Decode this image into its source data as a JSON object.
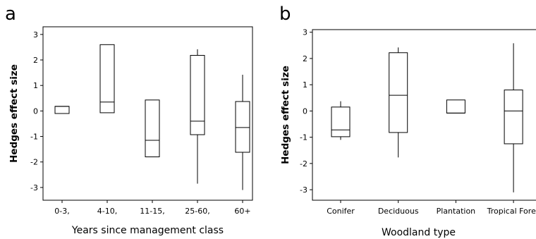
{
  "chart_data": [
    {
      "panel": "a",
      "type": "box",
      "xlabel": "Years since management class",
      "ylabel": "Hedges effect size",
      "ylim": [
        -3.5,
        3.3
      ],
      "yticks": [
        "3",
        "2",
        "1",
        "0",
        "-1",
        "-2",
        "-3"
      ],
      "categories": [
        "0-3,",
        "4-10,",
        "11-15,",
        "25-60,",
        "60+"
      ],
      "boxes": [
        {
          "q1": -0.1,
          "median": 0.18,
          "q3": 0.18,
          "whisker_low": -0.1,
          "whisker_high": 0.18
        },
        {
          "q1": -0.07,
          "median": 0.35,
          "q3": 2.6,
          "whisker_low": -0.07,
          "whisker_high": 2.6
        },
        {
          "q1": -1.8,
          "median": -1.15,
          "q3": 0.43,
          "whisker_low": -1.8,
          "whisker_high": 0.43
        },
        {
          "q1": -0.93,
          "median": -0.4,
          "q3": 2.18,
          "whisker_low": -2.85,
          "whisker_high": 2.42
        },
        {
          "q1": -1.62,
          "median": -0.65,
          "q3": 0.37,
          "whisker_low": -3.1,
          "whisker_high": 1.42
        }
      ],
      "grid": false
    },
    {
      "panel": "b",
      "type": "box",
      "xlabel": "Woodland type",
      "ylabel": "Hedges effect size",
      "ylim": [
        -3.4,
        3.1
      ],
      "yticks": [
        "3",
        "2",
        "1",
        "0",
        "-1",
        "-2",
        "-3"
      ],
      "categories": [
        "Conifer",
        "Deciduous",
        "Plantation",
        "Tropical Fores"
      ],
      "boxes": [
        {
          "q1": -0.98,
          "median": -0.72,
          "q3": 0.15,
          "whisker_low": -1.1,
          "whisker_high": 0.37
        },
        {
          "q1": -0.82,
          "median": 0.6,
          "q3": 2.22,
          "whisker_low": -1.77,
          "whisker_high": 2.42
        },
        {
          "q1": -0.08,
          "median": -0.08,
          "q3": 0.42,
          "whisker_low": -0.08,
          "whisker_high": 0.42
        },
        {
          "q1": -1.25,
          "median": 0.0,
          "q3": 0.8,
          "whisker_low": -3.1,
          "whisker_high": 2.58
        }
      ],
      "grid": false
    }
  ]
}
